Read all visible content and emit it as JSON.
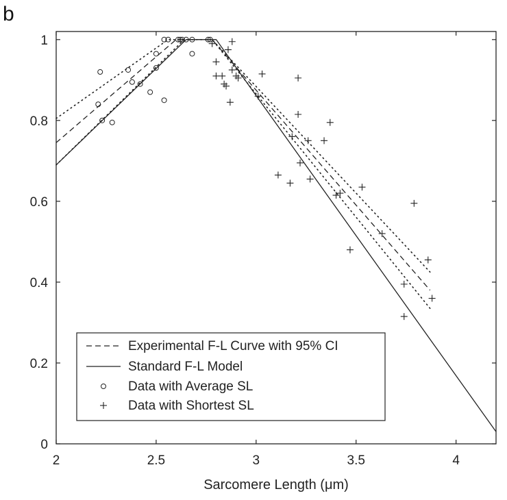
{
  "chart_data": {
    "type": "scatter",
    "panel_label": "b",
    "xlabel": "Sarcomere Length (μm)",
    "ylabel": "",
    "xlim": [
      2,
      4.2
    ],
    "ylim": [
      0,
      1.02
    ],
    "xticks": [
      {
        "value": 2,
        "label": "2"
      },
      {
        "value": 2.5,
        "label": "2.5"
      },
      {
        "value": 3,
        "label": "3"
      },
      {
        "value": 3.5,
        "label": "3.5"
      },
      {
        "value": 4,
        "label": "4"
      }
    ],
    "yticks": [
      {
        "value": 0,
        "label": "0"
      },
      {
        "value": 0.2,
        "label": "0.2"
      },
      {
        "value": 0.4,
        "label": "0.4"
      },
      {
        "value": 0.6,
        "label": "0.6"
      },
      {
        "value": 0.8,
        "label": "0.8"
      },
      {
        "value": 1,
        "label": "1"
      }
    ],
    "grid": false,
    "legend_position": "bottom-left",
    "legend": [
      {
        "label": "Experimental F-L Curve with 95% CI",
        "style": "dashed-line"
      },
      {
        "label": "Standard F-L Model",
        "style": "solid-line"
      },
      {
        "label": "Data with Average SL",
        "style": "circle-marker"
      },
      {
        "label": "Data with Shortest SL",
        "style": "plus-marker"
      }
    ],
    "series": [
      {
        "name": "Experimental F-L Curve with 95% CI",
        "style": "dashed",
        "points": [
          [
            2.0,
            0.745
          ],
          [
            2.6,
            1.0
          ],
          [
            2.78,
            1.0
          ],
          [
            3.87,
            0.38
          ]
        ]
      },
      {
        "style": "dotted",
        "points": [
          [
            2.0,
            0.805
          ],
          [
            2.56,
            1.0
          ],
          [
            2.78,
            1.0
          ],
          [
            3.87,
            0.425
          ]
        ]
      },
      {
        "style": "dotted",
        "points": [
          [
            2.0,
            0.69
          ],
          [
            2.64,
            1.0
          ],
          [
            2.78,
            1.0
          ],
          [
            3.87,
            0.335
          ]
        ]
      },
      {
        "name": "Standard F-L Model",
        "style": "solid",
        "points": [
          [
            2.0,
            0.69
          ],
          [
            2.65,
            1.0
          ],
          [
            2.8,
            1.0
          ],
          [
            4.2,
            0.03
          ]
        ]
      },
      {
        "name": "Data with Average SL",
        "style": "circle",
        "points": [
          [
            2.22,
            0.92
          ],
          [
            2.21,
            0.84
          ],
          [
            2.23,
            0.8
          ],
          [
            2.28,
            0.795
          ],
          [
            2.36,
            0.925
          ],
          [
            2.38,
            0.895
          ],
          [
            2.42,
            0.89
          ],
          [
            2.47,
            0.87
          ],
          [
            2.5,
            0.93
          ],
          [
            2.5,
            0.965
          ],
          [
            2.54,
            0.85
          ],
          [
            2.54,
            1.0
          ],
          [
            2.56,
            1.0
          ],
          [
            2.61,
            1.0
          ],
          [
            2.62,
            1.0
          ],
          [
            2.63,
            1.0
          ],
          [
            2.65,
            1.0
          ],
          [
            2.68,
            1.0
          ],
          [
            2.68,
            0.965
          ],
          [
            2.76,
            1.0
          ],
          [
            2.77,
            1.0
          ]
        ]
      },
      {
        "name": "Data with Shortest SL",
        "style": "plus",
        "points": [
          [
            2.78,
            0.99
          ],
          [
            2.8,
            0.945
          ],
          [
            2.8,
            0.91
          ],
          [
            2.83,
            0.91
          ],
          [
            2.84,
            0.89
          ],
          [
            2.85,
            0.885
          ],
          [
            2.86,
            0.975
          ],
          [
            2.87,
            0.845
          ],
          [
            2.88,
            0.995
          ],
          [
            2.88,
            0.925
          ],
          [
            2.9,
            0.91
          ],
          [
            2.91,
            0.905
          ],
          [
            3.01,
            0.86
          ],
          [
            3.03,
            0.915
          ],
          [
            3.11,
            0.665
          ],
          [
            3.17,
            0.645
          ],
          [
            3.18,
            0.76
          ],
          [
            3.21,
            0.815
          ],
          [
            3.21,
            0.905
          ],
          [
            3.22,
            0.695
          ],
          [
            3.26,
            0.75
          ],
          [
            3.27,
            0.655
          ],
          [
            3.34,
            0.75
          ],
          [
            3.37,
            0.795
          ],
          [
            3.4,
            0.615
          ],
          [
            3.42,
            0.62
          ],
          [
            3.53,
            0.635
          ],
          [
            3.47,
            0.48
          ],
          [
            3.63,
            0.52
          ],
          [
            3.74,
            0.395
          ],
          [
            3.74,
            0.315
          ],
          [
            3.79,
            0.595
          ],
          [
            3.86,
            0.455
          ],
          [
            3.88,
            0.36
          ]
        ]
      }
    ]
  }
}
